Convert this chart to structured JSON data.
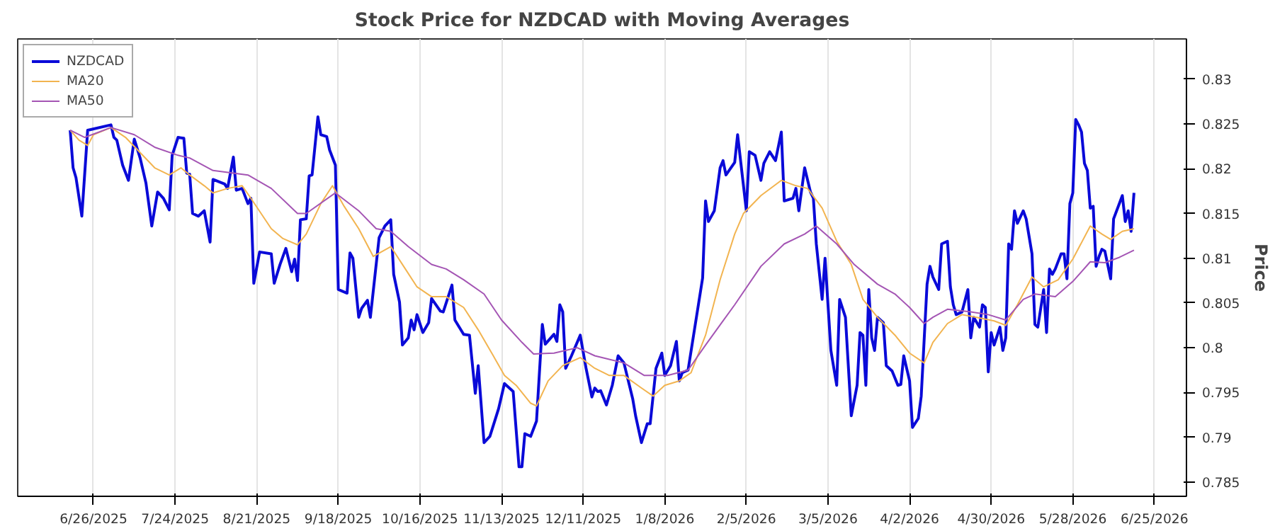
{
  "chart_data": {
    "type": "line",
    "title": "Stock Price for NZDCAD with Moving Averages",
    "ylabel": "Price",
    "xlim": [
      "2025-05-31",
      "2026-07-06"
    ],
    "ylim": [
      0.7834,
      0.8345
    ],
    "xticks": [
      {
        "value": "2025-06-26",
        "label": "6/26/2025"
      },
      {
        "value": "2025-07-24",
        "label": "7/24/2025"
      },
      {
        "value": "2025-08-21",
        "label": "8/21/2025"
      },
      {
        "value": "2025-09-18",
        "label": "9/18/2025"
      },
      {
        "value": "2025-10-16",
        "label": "10/16/2025"
      },
      {
        "value": "2025-11-13",
        "label": "11/13/2025"
      },
      {
        "value": "2025-12-11",
        "label": "12/11/2025"
      },
      {
        "value": "2026-01-08",
        "label": "1/8/2026"
      },
      {
        "value": "2026-02-05",
        "label": "2/5/2026"
      },
      {
        "value": "2026-03-05",
        "label": "3/5/2026"
      },
      {
        "value": "2026-04-02",
        "label": "4/2/2026"
      },
      {
        "value": "2026-04-30",
        "label": "4/30/2026"
      },
      {
        "value": "2026-05-28",
        "label": "5/28/2026"
      },
      {
        "value": "2026-06-25",
        "label": "6/25/2026"
      }
    ],
    "yticks": [
      0.785,
      0.79,
      0.795,
      0.8,
      0.805,
      0.81,
      0.815,
      0.82,
      0.825,
      0.83
    ],
    "grid": "x",
    "legend": "top left",
    "line_style": "solid",
    "marker": "none",
    "series": [
      {
        "name": "NZDCAD",
        "color": "#0a0ad8",
        "x": [
          "2025-06-18",
          "2025-06-19",
          "2025-06-20",
          "2025-06-22",
          "2025-06-24",
          "2025-07-02",
          "2025-07-03",
          "2025-07-04",
          "2025-07-06",
          "2025-07-08",
          "2025-07-10",
          "2025-07-12",
          "2025-07-14",
          "2025-07-16",
          "2025-07-18",
          "2025-07-20",
          "2025-07-22",
          "2025-07-23",
          "2025-07-25",
          "2025-07-27",
          "2025-07-28",
          "2025-07-29",
          "2025-07-30",
          "2025-08-01",
          "2025-08-03",
          "2025-08-05",
          "2025-08-06",
          "2025-08-10",
          "2025-08-11",
          "2025-08-13",
          "2025-08-14",
          "2025-08-16",
          "2025-08-18",
          "2025-08-19",
          "2025-08-20",
          "2025-08-22",
          "2025-08-26",
          "2025-08-27",
          "2025-08-29",
          "2025-08-31",
          "2025-09-02",
          "2025-09-03",
          "2025-09-04",
          "2025-09-05",
          "2025-09-07",
          "2025-09-08",
          "2025-09-09",
          "2025-09-11",
          "2025-09-12",
          "2025-09-14",
          "2025-09-15",
          "2025-09-17",
          "2025-09-18",
          "2025-09-21",
          "2025-09-22",
          "2025-09-23",
          "2025-09-25",
          "2025-09-26",
          "2025-09-28",
          "2025-09-29",
          "2025-10-02",
          "2025-10-04",
          "2025-10-06",
          "2025-10-07",
          "2025-10-09",
          "2025-10-10",
          "2025-10-12",
          "2025-10-13",
          "2025-10-14",
          "2025-10-15",
          "2025-10-17",
          "2025-10-19",
          "2025-10-20",
          "2025-10-23",
          "2025-10-24",
          "2025-10-27",
          "2025-10-28",
          "2025-10-31",
          "2025-11-02",
          "2025-11-04",
          "2025-11-05",
          "2025-11-07",
          "2025-11-09",
          "2025-11-12",
          "2025-11-14",
          "2025-11-17",
          "2025-11-19",
          "2025-11-20",
          "2025-11-21",
          "2025-11-23",
          "2025-11-25",
          "2025-11-27",
          "2025-11-28",
          "2025-12-01",
          "2025-12-02",
          "2025-12-03",
          "2025-12-04",
          "2025-12-05",
          "2025-12-07",
          "2025-12-10",
          "2025-12-12",
          "2025-12-14",
          "2025-12-15",
          "2025-12-16",
          "2025-12-17",
          "2025-12-19",
          "2025-12-21",
          "2025-12-23",
          "2025-12-25",
          "2025-12-28",
          "2025-12-29",
          "2025-12-31",
          "2026-01-02",
          "2026-01-03",
          "2026-01-05",
          "2026-01-07",
          "2026-01-08",
          "2026-01-10",
          "2026-01-12",
          "2026-01-13",
          "2026-01-14",
          "2026-01-16",
          "2026-01-21",
          "2026-01-22",
          "2026-01-23",
          "2026-01-25",
          "2026-01-27",
          "2026-01-28",
          "2026-01-29",
          "2026-02-01",
          "2026-02-02",
          "2026-02-05",
          "2026-02-06",
          "2026-02-08",
          "2026-02-10",
          "2026-02-11",
          "2026-02-13",
          "2026-02-15",
          "2026-02-17",
          "2026-02-18",
          "2026-02-21",
          "2026-02-22",
          "2026-02-23",
          "2026-02-25",
          "2026-02-27",
          "2026-02-28",
          "2026-03-01",
          "2026-03-03",
          "2026-03-04",
          "2026-03-06",
          "2026-03-08",
          "2026-03-09",
          "2026-03-11",
          "2026-03-13",
          "2026-03-15",
          "2026-03-16",
          "2026-03-17",
          "2026-03-18",
          "2026-03-19",
          "2026-03-20",
          "2026-03-21",
          "2026-03-22",
          "2026-03-24",
          "2026-03-25",
          "2026-03-27",
          "2026-03-29",
          "2026-03-30",
          "2026-03-31",
          "2026-04-02",
          "2026-04-03",
          "2026-04-05",
          "2026-04-06",
          "2026-04-08",
          "2026-04-09",
          "2026-04-10",
          "2026-04-12",
          "2026-04-13",
          "2026-04-15",
          "2026-04-16",
          "2026-04-17",
          "2026-04-18",
          "2026-04-20",
          "2026-04-22",
          "2026-04-23",
          "2026-04-24",
          "2026-04-26",
          "2026-04-27",
          "2026-04-28",
          "2026-04-29",
          "2026-04-30",
          "2026-05-01",
          "2026-05-03",
          "2026-05-04",
          "2026-05-05",
          "2026-05-06",
          "2026-05-07",
          "2026-05-08",
          "2026-05-09",
          "2026-05-11",
          "2026-05-12",
          "2026-05-14",
          "2026-05-15",
          "2026-05-16",
          "2026-05-18",
          "2026-05-19",
          "2026-05-20",
          "2026-05-21",
          "2026-05-22",
          "2026-05-24",
          "2026-05-25",
          "2026-05-26",
          "2026-05-27",
          "2026-05-28",
          "2026-05-29",
          "2026-05-30",
          "2026-05-31",
          "2026-06-01",
          "2026-06-02",
          "2026-06-03",
          "2026-06-04",
          "2026-06-05",
          "2026-06-06",
          "2026-06-07",
          "2026-06-08",
          "2026-06-10",
          "2026-06-11",
          "2026-06-14",
          "2026-06-15",
          "2026-06-16",
          "2026-06-17",
          "2026-06-18"
        ],
        "values": [
          0.8243,
          0.8201,
          0.819,
          0.8147,
          0.8243,
          0.8249,
          0.8235,
          0.8232,
          0.8204,
          0.8187,
          0.8233,
          0.8212,
          0.8184,
          0.8136,
          0.8174,
          0.8167,
          0.8154,
          0.8215,
          0.8235,
          0.8234,
          0.8195,
          0.8194,
          0.815,
          0.8147,
          0.8153,
          0.8118,
          0.8188,
          0.8183,
          0.8178,
          0.8213,
          0.8176,
          0.8178,
          0.8161,
          0.8167,
          0.8072,
          0.8107,
          0.8105,
          0.8072,
          0.8093,
          0.8111,
          0.8085,
          0.8099,
          0.8075,
          0.8143,
          0.8144,
          0.8192,
          0.8193,
          0.8258,
          0.8238,
          0.8236,
          0.8221,
          0.8204,
          0.8065,
          0.8061,
          0.8106,
          0.81,
          0.8034,
          0.8044,
          0.8053,
          0.8034,
          0.8123,
          0.8136,
          0.8143,
          0.8082,
          0.8051,
          0.8003,
          0.8011,
          0.8031,
          0.802,
          0.8037,
          0.8017,
          0.8028,
          0.8055,
          0.8041,
          0.804,
          0.807,
          0.8031,
          0.8015,
          0.8014,
          0.7949,
          0.798,
          0.7894,
          0.7901,
          0.7932,
          0.796,
          0.7951,
          0.7867,
          0.7867,
          0.7904,
          0.7901,
          0.7918,
          0.8026,
          0.8004,
          0.8015,
          0.8007,
          0.8048,
          0.804,
          0.7977,
          0.7991,
          0.8014,
          0.7977,
          0.7945,
          0.7955,
          0.7951,
          0.7952,
          0.7936,
          0.7958,
          0.7991,
          0.7983,
          0.7943,
          0.7924,
          0.7894,
          0.7915,
          0.7915,
          0.7977,
          0.7994,
          0.7969,
          0.798,
          0.8007,
          0.7963,
          0.7972,
          0.7975,
          0.8078,
          0.8164,
          0.8141,
          0.8153,
          0.8201,
          0.8209,
          0.8193,
          0.8207,
          0.8238,
          0.8153,
          0.8219,
          0.8215,
          0.8187,
          0.8206,
          0.8219,
          0.8209,
          0.8241,
          0.8164,
          0.8167,
          0.8178,
          0.8153,
          0.8201,
          0.8174,
          0.8167,
          0.8116,
          0.8054,
          0.81,
          0.7997,
          0.7958,
          0.8054,
          0.8034,
          0.7924,
          0.7958,
          0.8017,
          0.8014,
          0.7958,
          0.8065,
          0.8011,
          0.7997,
          0.8034,
          0.8028,
          0.798,
          0.7974,
          0.7958,
          0.7959,
          0.7991,
          0.7963,
          0.7911,
          0.7921,
          0.7946,
          0.8071,
          0.8091,
          0.8079,
          0.8065,
          0.8116,
          0.8119,
          0.8068,
          0.8048,
          0.8037,
          0.804,
          0.8065,
          0.8011,
          0.8034,
          0.8023,
          0.8048,
          0.8045,
          0.7973,
          0.8017,
          0.8003,
          0.8023,
          0.7997,
          0.8011,
          0.8116,
          0.811,
          0.8153,
          0.8139,
          0.8153,
          0.8144,
          0.8105,
          0.8026,
          0.8023,
          0.8065,
          0.8017,
          0.8088,
          0.8082,
          0.8088,
          0.8105,
          0.8105,
          0.8077,
          0.8161,
          0.8173,
          0.8255,
          0.8249,
          0.8241,
          0.8206,
          0.8198,
          0.8156,
          0.8158,
          0.8091,
          0.8102,
          0.811,
          0.8108,
          0.8077,
          0.8144,
          0.817,
          0.8141,
          0.8153,
          0.813,
          0.8173
        ]
      },
      {
        "name": "MA20",
        "color": "#f2b450",
        "x": [
          "2025-06-18",
          "2025-06-21",
          "2025-06-24",
          "2025-06-26",
          "2025-07-02",
          "2025-07-07",
          "2025-07-12",
          "2025-07-17",
          "2025-07-22",
          "2025-07-26",
          "2025-07-29",
          "2025-08-03",
          "2025-08-06",
          "2025-08-11",
          "2025-08-16",
          "2025-08-19",
          "2025-08-26",
          "2025-08-30",
          "2025-09-04",
          "2025-09-07",
          "2025-09-12",
          "2025-09-16",
          "2025-09-20",
          "2025-09-25",
          "2025-09-30",
          "2025-10-06",
          "2025-10-11",
          "2025-10-15",
          "2025-10-20",
          "2025-10-25",
          "2025-10-31",
          "2025-11-05",
          "2025-11-10",
          "2025-11-14",
          "2025-11-18",
          "2025-11-23",
          "2025-11-25",
          "2025-11-29",
          "2025-12-04",
          "2025-12-10",
          "2025-12-15",
          "2025-12-20",
          "2025-12-25",
          "2025-12-31",
          "2026-01-04",
          "2026-01-08",
          "2026-01-13",
          "2026-01-17",
          "2026-01-22",
          "2026-01-27",
          "2026-02-01",
          "2026-02-04",
          "2026-02-10",
          "2026-02-17",
          "2026-02-22",
          "2026-02-26",
          "2026-03-03",
          "2026-03-08",
          "2026-03-13",
          "2026-03-17",
          "2026-03-22",
          "2026-03-28",
          "2026-04-02",
          "2026-04-07",
          "2026-04-10",
          "2026-04-15",
          "2026-04-20",
          "2026-04-25",
          "2026-05-01",
          "2026-05-05",
          "2026-05-09",
          "2026-05-14",
          "2026-05-18",
          "2026-05-23",
          "2026-05-28",
          "2026-06-03",
          "2026-06-07",
          "2026-06-10",
          "2026-06-14",
          "2026-06-18"
        ],
        "values": [
          0.8243,
          0.8232,
          0.8226,
          0.8238,
          0.8246,
          0.8235,
          0.8218,
          0.8201,
          0.8193,
          0.8201,
          0.8193,
          0.8181,
          0.8173,
          0.8178,
          0.8181,
          0.8167,
          0.8133,
          0.8122,
          0.8115,
          0.8127,
          0.8161,
          0.8181,
          0.8158,
          0.8133,
          0.8102,
          0.8113,
          0.8088,
          0.8068,
          0.8057,
          0.8057,
          0.8045,
          0.802,
          0.7992,
          0.7969,
          0.7958,
          0.7938,
          0.7935,
          0.7963,
          0.798,
          0.7989,
          0.7977,
          0.7969,
          0.7969,
          0.7955,
          0.7946,
          0.7958,
          0.7963,
          0.7972,
          0.8014,
          0.8076,
          0.8127,
          0.815,
          0.817,
          0.8187,
          0.8181,
          0.8178,
          0.8156,
          0.8119,
          0.8093,
          0.8054,
          0.8034,
          0.8014,
          0.7994,
          0.7983,
          0.8006,
          0.8027,
          0.8037,
          0.8034,
          0.803,
          0.8025,
          0.8048,
          0.8079,
          0.8068,
          0.8076,
          0.8099,
          0.8136,
          0.8127,
          0.8121,
          0.813,
          0.8133
        ]
      },
      {
        "name": "MA50",
        "color": "#a455b4",
        "x": [
          "2025-06-18",
          "2025-06-23",
          "2025-07-02",
          "2025-07-10",
          "2025-07-17",
          "2025-07-25",
          "2025-07-29",
          "2025-08-06",
          "2025-08-18",
          "2025-08-26",
          "2025-09-04",
          "2025-09-07",
          "2025-09-17",
          "2025-09-25",
          "2025-10-01",
          "2025-10-06",
          "2025-10-12",
          "2025-10-20",
          "2025-10-25",
          "2025-10-31",
          "2025-11-07",
          "2025-11-13",
          "2025-11-20",
          "2025-11-24",
          "2025-12-01",
          "2025-12-09",
          "2025-12-15",
          "2025-12-25",
          "2026-01-01",
          "2026-01-09",
          "2026-01-16",
          "2026-01-22",
          "2026-02-01",
          "2026-02-10",
          "2026-02-18",
          "2026-02-25",
          "2026-03-01",
          "2026-03-08",
          "2026-03-14",
          "2026-03-22",
          "2026-03-28",
          "2026-04-02",
          "2026-04-07",
          "2026-04-10",
          "2026-04-15",
          "2026-04-23",
          "2026-04-29",
          "2026-05-05",
          "2026-05-11",
          "2026-05-15",
          "2026-05-22",
          "2026-05-28",
          "2026-06-03",
          "2026-06-08",
          "2026-06-13",
          "2026-06-18"
        ],
        "values": [
          0.8243,
          0.8235,
          0.8246,
          0.8238,
          0.8224,
          0.8215,
          0.8212,
          0.8198,
          0.8193,
          0.8178,
          0.815,
          0.815,
          0.8173,
          0.8153,
          0.8133,
          0.813,
          0.8113,
          0.8093,
          0.8088,
          0.8076,
          0.806,
          0.8031,
          0.8006,
          0.7993,
          0.7994,
          0.8,
          0.7991,
          0.7983,
          0.7969,
          0.7969,
          0.7975,
          0.8003,
          0.8048,
          0.8091,
          0.8116,
          0.8127,
          0.8136,
          0.8116,
          0.8093,
          0.8071,
          0.806,
          0.8045,
          0.8027,
          0.8034,
          0.8043,
          0.804,
          0.8037,
          0.8031,
          0.8054,
          0.806,
          0.8057,
          0.8074,
          0.8096,
          0.8095,
          0.8101,
          0.8109
        ]
      }
    ]
  }
}
